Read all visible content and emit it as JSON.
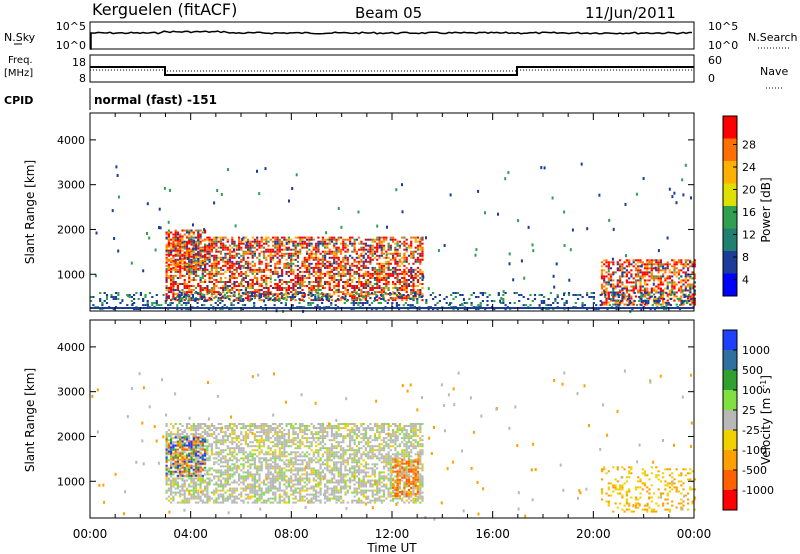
{
  "header": {
    "station": "Kerguelen (fitACF)",
    "beam": "Beam 05",
    "date": "11/Jun/2011"
  },
  "strips": {
    "nsky": {
      "label": "N.Sky",
      "ticks": [
        "10^5",
        "10^0"
      ],
      "right_label": "N.Search",
      "right_ticks": [
        "10^5",
        "10^0"
      ]
    },
    "freq": {
      "label_top": "Freq.",
      "label_bottom": "[MHz]",
      "ticks": [
        "18",
        "8"
      ],
      "right_label": "Nave",
      "right_ticks": [
        "60",
        "0"
      ]
    },
    "cpid": {
      "label": "CPID",
      "value": "normal (fast) -151"
    }
  },
  "panels": {
    "power": {
      "ylabel": "Slant Range [km]",
      "colorbar_label": "Power [dB]",
      "colorbar_ticks": [
        "28",
        "24",
        "20",
        "16",
        "12",
        "8",
        "4"
      ]
    },
    "velocity": {
      "ylabel": "Slant Range [km]",
      "colorbar_label": "Velocity [m s-1]",
      "colorbar_label_main": "Velocity [m s",
      "colorbar_label_exp": "-1",
      "colorbar_label_end": "]",
      "colorbar_ticks": [
        "1000",
        "500",
        "100",
        "25",
        "-25",
        "-100",
        "-500",
        "-1000"
      ]
    }
  },
  "x_axis": {
    "label": "Time UT",
    "ticks": [
      "00:00",
      "04:00",
      "08:00",
      "12:00",
      "16:00",
      "20:00",
      "00:00"
    ]
  },
  "colors": {
    "power_scale": [
      "#ff0000",
      "#ff7000",
      "#ffb000",
      "#e0e000",
      "#30a050",
      "#208070",
      "#1c3c9a",
      "#0000ff"
    ],
    "velocity_scale": [
      "#2040ff",
      "#3070a0",
      "#30a030",
      "#80e040",
      "#b8b8b8",
      "#f0d000",
      "#ffa000",
      "#ff6000",
      "#ff0000"
    ]
  },
  "chart_data": [
    {
      "type": "heatmap",
      "title": "Power",
      "xlabel": "Time UT",
      "ylabel": "Slant Range [km]",
      "xlim": [
        "00:00",
        "24:00"
      ],
      "ylim": [
        180,
        4600
      ],
      "yticks": [
        1000,
        2000,
        3000,
        4000
      ],
      "colorbar": {
        "label": "Power [dB]",
        "range": [
          0,
          32
        ],
        "ticks": [
          4,
          8,
          12,
          16,
          20,
          24,
          28
        ]
      },
      "echo_regions": [
        {
          "start_h": 3.0,
          "end_h": 13.2,
          "range_km": [
            400,
            1800
          ],
          "typical_db": 22
        },
        {
          "start_h": 3.0,
          "end_h": 4.6,
          "range_km": [
            1100,
            2000
          ],
          "typical_db": 26
        },
        {
          "start_h": 20.3,
          "end_h": 24.0,
          "range_km": [
            300,
            1300
          ],
          "typical_db": 25
        },
        {
          "start_h": 0.0,
          "end_h": 24.0,
          "range_km": [
            200,
            600
          ],
          "typical_db": 6
        }
      ]
    },
    {
      "type": "heatmap",
      "title": "Velocity",
      "xlabel": "Time UT",
      "ylabel": "Slant Range [km]",
      "xlim": [
        "00:00",
        "24:00"
      ],
      "ylim": [
        180,
        4600
      ],
      "yticks": [
        1000,
        2000,
        3000,
        4000
      ],
      "colorbar": {
        "label": "Velocity [m s-1]",
        "range": [
          -1000,
          1000
        ],
        "ticks": [
          1000,
          500,
          100,
          25,
          -25,
          -100,
          -500,
          -1000
        ]
      },
      "echo_regions": [
        {
          "start_h": 3.0,
          "end_h": 13.2,
          "range_km": [
            500,
            2300
          ],
          "typical_mps": 0
        },
        {
          "start_h": 3.0,
          "end_h": 4.6,
          "range_km": [
            1100,
            2000
          ],
          "typical_mps": 200
        },
        {
          "start_h": 12.0,
          "end_h": 13.0,
          "range_km": [
            650,
            1500
          ],
          "typical_mps": -400
        },
        {
          "start_h": 20.3,
          "end_h": 24.0,
          "range_km": [
            300,
            1300
          ],
          "typical_mps": -30
        }
      ]
    }
  ]
}
